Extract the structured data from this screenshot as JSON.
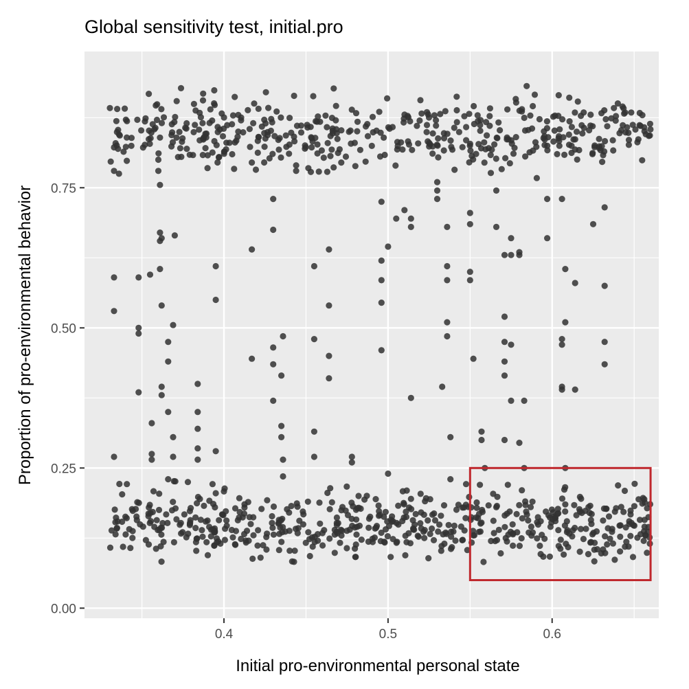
{
  "chart_data": {
    "type": "scatter",
    "title": "Global sensitivity test, initial.pro",
    "xlabel": "Initial pro-environmental personal state",
    "ylabel": "Proportion of pro-environmental behavior",
    "xlim": [
      0.315,
      0.665
    ],
    "ylim": [
      -0.018,
      0.993
    ],
    "x_ticks": [
      0.4,
      0.5,
      0.6
    ],
    "x_tick_labels": [
      "0.4",
      "0.5",
      "0.6"
    ],
    "y_ticks": [
      0.0,
      0.25,
      0.5,
      0.75
    ],
    "y_tick_labels": [
      "0.00",
      "0.25",
      "0.50",
      "0.75"
    ],
    "grid": true,
    "point_color": "#333333",
    "highlight_box": {
      "x": [
        0.55,
        0.66
      ],
      "y": [
        0.05,
        0.25
      ],
      "color": "#c0282d"
    },
    "clusters": [
      {
        "x_range": [
          0.33,
          0.66
        ],
        "y_range": [
          0.06,
          0.24
        ],
        "count": 560
      },
      {
        "x_range": [
          0.33,
          0.66
        ],
        "y_range": [
          0.76,
          0.94
        ],
        "count": 470
      }
    ],
    "points": [
      [
        0.333,
        0.78
      ],
      [
        0.333,
        0.59
      ],
      [
        0.333,
        0.53
      ],
      [
        0.333,
        0.27
      ],
      [
        0.336,
        0.775
      ],
      [
        0.348,
        0.59
      ],
      [
        0.348,
        0.5
      ],
      [
        0.348,
        0.49
      ],
      [
        0.348,
        0.385
      ],
      [
        0.355,
        0.595
      ],
      [
        0.356,
        0.33
      ],
      [
        0.356,
        0.275
      ],
      [
        0.356,
        0.265
      ],
      [
        0.36,
        0.78
      ],
      [
        0.36,
        0.8
      ],
      [
        0.361,
        0.755
      ],
      [
        0.361,
        0.67
      ],
      [
        0.361,
        0.655
      ],
      [
        0.362,
        0.66
      ],
      [
        0.361,
        0.605
      ],
      [
        0.362,
        0.54
      ],
      [
        0.362,
        0.395
      ],
      [
        0.362,
        0.38
      ],
      [
        0.366,
        0.475
      ],
      [
        0.366,
        0.44
      ],
      [
        0.366,
        0.35
      ],
      [
        0.366,
        0.23
      ],
      [
        0.369,
        0.505
      ],
      [
        0.369,
        0.305
      ],
      [
        0.369,
        0.27
      ],
      [
        0.37,
        0.665
      ],
      [
        0.374,
        0.805
      ],
      [
        0.378,
        0.225
      ],
      [
        0.384,
        0.4
      ],
      [
        0.384,
        0.35
      ],
      [
        0.384,
        0.32
      ],
      [
        0.384,
        0.285
      ],
      [
        0.384,
        0.265
      ],
      [
        0.395,
        0.61
      ],
      [
        0.395,
        0.55
      ],
      [
        0.395,
        0.28
      ],
      [
        0.395,
        0.205
      ],
      [
        0.39,
        0.785
      ],
      [
        0.417,
        0.795
      ],
      [
        0.417,
        0.64
      ],
      [
        0.417,
        0.445
      ],
      [
        0.43,
        0.73
      ],
      [
        0.43,
        0.675
      ],
      [
        0.43,
        0.465
      ],
      [
        0.43,
        0.435
      ],
      [
        0.43,
        0.37
      ],
      [
        0.436,
        0.485
      ],
      [
        0.435,
        0.415
      ],
      [
        0.435,
        0.325
      ],
      [
        0.435,
        0.305
      ],
      [
        0.436,
        0.265
      ],
      [
        0.436,
        0.235
      ],
      [
        0.444,
        0.79
      ],
      [
        0.444,
        0.78
      ],
      [
        0.455,
        0.61
      ],
      [
        0.455,
        0.48
      ],
      [
        0.455,
        0.315
      ],
      [
        0.455,
        0.27
      ],
      [
        0.464,
        0.64
      ],
      [
        0.464,
        0.54
      ],
      [
        0.464,
        0.45
      ],
      [
        0.464,
        0.41
      ],
      [
        0.478,
        0.27
      ],
      [
        0.478,
        0.26
      ],
      [
        0.496,
        0.725
      ],
      [
        0.496,
        0.62
      ],
      [
        0.496,
        0.585
      ],
      [
        0.496,
        0.545
      ],
      [
        0.496,
        0.46
      ],
      [
        0.5,
        0.645
      ],
      [
        0.5,
        0.24
      ],
      [
        0.505,
        0.695
      ],
      [
        0.51,
        0.71
      ],
      [
        0.514,
        0.695
      ],
      [
        0.514,
        0.68
      ],
      [
        0.514,
        0.375
      ],
      [
        0.514,
        0.195
      ],
      [
        0.53,
        0.76
      ],
      [
        0.53,
        0.745
      ],
      [
        0.53,
        0.73
      ],
      [
        0.533,
        0.395
      ],
      [
        0.536,
        0.68
      ],
      [
        0.536,
        0.61
      ],
      [
        0.536,
        0.585
      ],
      [
        0.536,
        0.51
      ],
      [
        0.536,
        0.485
      ],
      [
        0.538,
        0.305
      ],
      [
        0.538,
        0.23
      ],
      [
        0.55,
        0.705
      ],
      [
        0.55,
        0.685
      ],
      [
        0.55,
        0.6
      ],
      [
        0.55,
        0.585
      ],
      [
        0.552,
        0.445
      ],
      [
        0.556,
        0.22
      ],
      [
        0.557,
        0.315
      ],
      [
        0.557,
        0.3
      ],
      [
        0.559,
        0.25
      ],
      [
        0.566,
        0.745
      ],
      [
        0.566,
        0.68
      ],
      [
        0.566,
        0.18
      ],
      [
        0.571,
        0.63
      ],
      [
        0.571,
        0.52
      ],
      [
        0.571,
        0.475
      ],
      [
        0.571,
        0.44
      ],
      [
        0.571,
        0.415
      ],
      [
        0.571,
        0.3
      ],
      [
        0.573,
        0.22
      ],
      [
        0.575,
        0.66
      ],
      [
        0.575,
        0.63
      ],
      [
        0.575,
        0.47
      ],
      [
        0.575,
        0.37
      ],
      [
        0.58,
        0.63
      ],
      [
        0.58,
        0.295
      ],
      [
        0.58,
        0.635
      ],
      [
        0.583,
        0.37
      ],
      [
        0.583,
        0.25
      ],
      [
        0.588,
        0.19
      ],
      [
        0.597,
        0.66
      ],
      [
        0.597,
        0.73
      ],
      [
        0.606,
        0.73
      ],
      [
        0.606,
        0.48
      ],
      [
        0.606,
        0.47
      ],
      [
        0.606,
        0.395
      ],
      [
        0.606,
        0.39
      ],
      [
        0.608,
        0.605
      ],
      [
        0.608,
        0.51
      ],
      [
        0.608,
        0.25
      ],
      [
        0.608,
        0.185
      ],
      [
        0.614,
        0.58
      ],
      [
        0.614,
        0.39
      ],
      [
        0.625,
        0.685
      ],
      [
        0.632,
        0.715
      ],
      [
        0.632,
        0.575
      ],
      [
        0.632,
        0.475
      ],
      [
        0.632,
        0.435
      ]
    ]
  }
}
